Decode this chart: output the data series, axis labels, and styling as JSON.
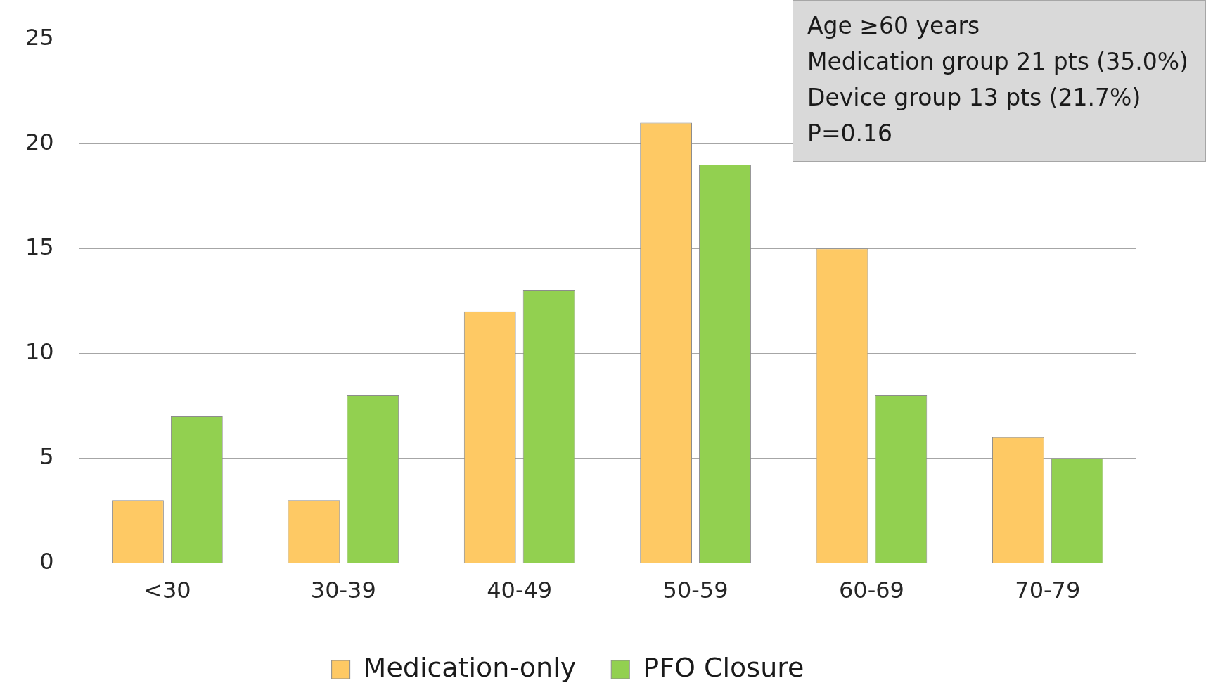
{
  "chart_data": {
    "type": "bar",
    "categories": [
      "<30",
      "30-39",
      "40-49",
      "50-59",
      "60-69",
      "70-79"
    ],
    "series": [
      {
        "name": "Medication-only",
        "color": "#fec964",
        "values": [
          3,
          3,
          12,
          21,
          15,
          6
        ]
      },
      {
        "name": "PFO Closure",
        "color": "#92d050",
        "values": [
          7,
          8,
          13,
          19,
          8,
          5
        ]
      }
    ],
    "ylim": [
      0,
      25
    ],
    "yticks": [
      0,
      5,
      10,
      15,
      20,
      25
    ],
    "grid": "y",
    "legend": "bottom",
    "annotations": [
      "Age ≥60 years",
      "Medication group 21 pts (35.0%)",
      "Device group 13 pts (21.7%)",
      "P=0.16"
    ]
  }
}
